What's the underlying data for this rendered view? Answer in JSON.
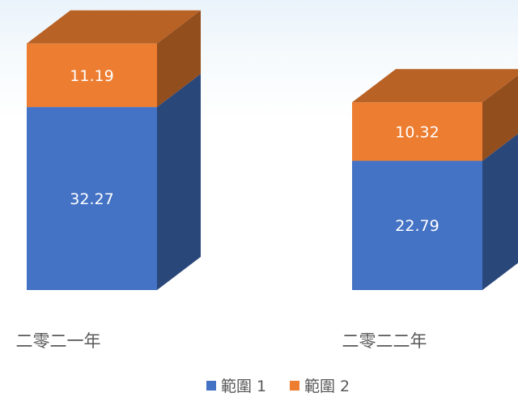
{
  "chart_data": {
    "type": "bar",
    "stacked": true,
    "three_d": true,
    "categories": [
      "二零二一年",
      "二零二二年"
    ],
    "series": [
      {
        "name": "範圍 1",
        "values": [
          32.27,
          22.79
        ],
        "color": "#4472c4"
      },
      {
        "name": "範圍 2",
        "values": [
          11.19,
          10.32
        ],
        "color": "#ed7d31"
      }
    ],
    "data_labels": [
      [
        "32.27",
        "22.79"
      ],
      [
        "11.19",
        "10.32"
      ]
    ],
    "legend_position": "bottom",
    "grid": false
  }
}
